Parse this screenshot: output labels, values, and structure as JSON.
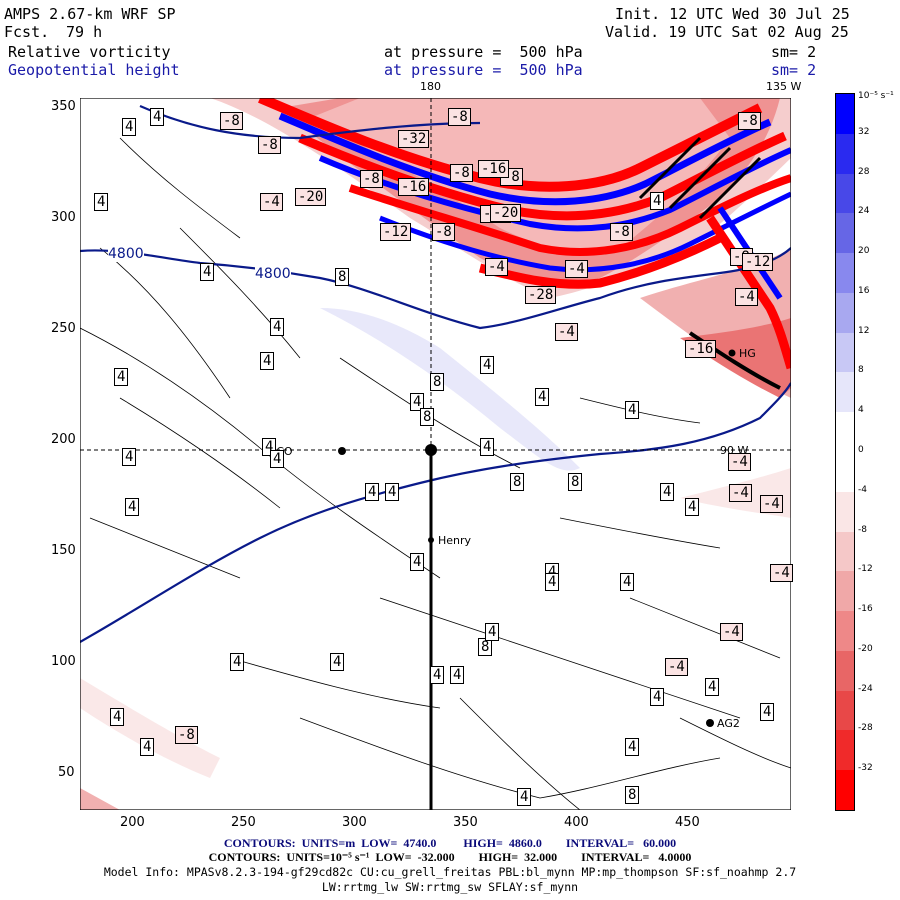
{
  "header": {
    "model": "AMPS 2.67-km WRF SP",
    "forecast_label": "Fcst.",
    "forecast_value": "79 h",
    "init": "Init. 12 UTC Wed 30 Jul 25",
    "valid": "Valid. 19 UTC Sat 02 Aug 25",
    "field1": "Relative vorticity",
    "field2": "Geopotential height",
    "pressure1": "at pressure =  500 hPa",
    "pressure2": "at pressure =  500 hPa",
    "sm1": "sm= 2",
    "sm2": "sm= 2"
  },
  "map": {
    "lon_180": "180",
    "lon_135w": "135 W",
    "lon_90w": "90 W",
    "x_ticks": [
      "200",
      "250",
      "300",
      "350",
      "400",
      "450"
    ],
    "y_ticks": [
      "350",
      "300",
      "250",
      "200",
      "150",
      "100",
      "50"
    ],
    "stations": [
      {
        "name": "NCO"
      },
      {
        "name": "Henry"
      },
      {
        "name": "AG2"
      },
      {
        "name": "HG"
      }
    ],
    "height_labels": [
      "4800",
      "4800"
    ],
    "vort_labels": [
      "4",
      "4",
      "-8",
      "-8",
      "-32",
      "-8",
      "-8",
      "-4",
      "-8",
      "-16",
      "-20",
      "-8",
      "-16",
      "-32",
      "4",
      "-12",
      "-8",
      "-20",
      "-8",
      "-8",
      "-12",
      "-4",
      "-28",
      "-4",
      "-4",
      "-4",
      "-16",
      "-8",
      "4",
      "4",
      "4",
      "4",
      "4",
      "4",
      "8",
      "8",
      "4",
      "4",
      "8",
      "4",
      "4",
      "8",
      "8",
      "4",
      "-4",
      "4",
      "-4",
      "4",
      "-4",
      "4",
      "4",
      "4",
      "4",
      "4",
      "-4",
      "4",
      "4",
      "8",
      "4",
      "4",
      "4",
      "4",
      "4",
      "4",
      "4",
      "4",
      "4",
      "4",
      "-8",
      "-4",
      "-4",
      "4",
      "4",
      "4",
      "8",
      "4"
    ]
  },
  "colorbar": {
    "units": "10⁻⁵ s⁻¹",
    "labels": [
      "32",
      "28",
      "24",
      "20",
      "16",
      "12",
      "8",
      "4",
      "0",
      "-4",
      "-8",
      "-12",
      "-16",
      "-20",
      "-24",
      "-28",
      "-32"
    ],
    "colors_top": [
      "#0000ff",
      "#2a2af0",
      "#4848e8",
      "#6666e6",
      "#8888ee",
      "#a8a8f0",
      "#c8c8f5",
      "#e6e6fa",
      "#ffffff",
      "#ffffff",
      "#fae6e6",
      "#f5c8c8",
      "#f0a8a8",
      "#ee8888",
      "#e86666",
      "#e84848",
      "#f02a2a",
      "#ff0000"
    ]
  },
  "footer": {
    "line1": "CONTOURS:  UNITS=m  LOW=  4740.0         HIGH=  4860.0        INTERVAL=   60.000",
    "line2": "CONTOURS:  UNITS=10⁻⁵ s⁻¹  LOW=  -32.000        HIGH=  32.000        INTERVAL=   4.0000",
    "line3": "Model Info: MPASv8.2.3-194-gf29cd82c CU:cu_grell_freitas PBL:bl_mynn MP:mp_thompson SF:sf_noahmp 2.7",
    "line4": "LW:rrtmg_lw SW:rrtmg_sw SFLAY:sf_mynn"
  }
}
